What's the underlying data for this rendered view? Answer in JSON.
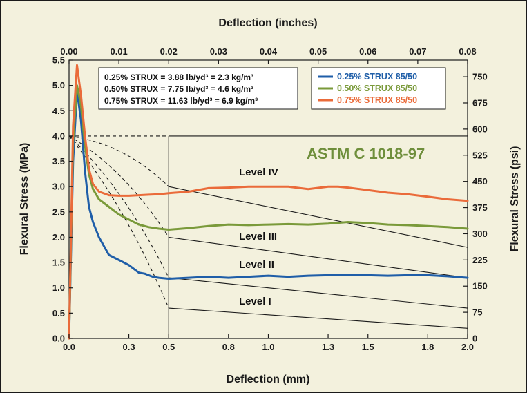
{
  "chart_data": {
    "type": "line",
    "xlabel": "Deflection (mm)",
    "x2label": "Deflection (inches)",
    "ylabel": "Flexural Stress (MPa)",
    "y2label": "Flexural Stress (psi)",
    "xlim": [
      0,
      2.0
    ],
    "ylim": [
      0,
      5.5
    ],
    "x2lim": [
      0,
      0.08
    ],
    "y2lim": [
      0,
      797.7
    ],
    "x_ticks": [
      "0.0",
      "0.3",
      "0.5",
      "0.8",
      "1.0",
      "1.3",
      "1.5",
      "1.8",
      "2.0"
    ],
    "x2_ticks": [
      "0.00",
      "0.01",
      "0.02",
      "0.03",
      "0.04",
      "0.05",
      "0.06",
      "0.07",
      "0.08"
    ],
    "y_ticks": [
      "0.0",
      "0.5",
      "1.0",
      "1.5",
      "2.0",
      "2.5",
      "3.0",
      "3.5",
      "4.0",
      "4.5",
      "5.0",
      "5.5"
    ],
    "y2_ticks": [
      "0",
      "75",
      "150",
      "225",
      "300",
      "375",
      "450",
      "525",
      "600",
      "675",
      "750"
    ],
    "annotation_lines": [
      "0.25% STRUX = 3.88 lb/yd³ = 2.3 kg/m³",
      "0.50% STRUX = 7.75 lb/yd³ = 4.6 kg/m³",
      "0.75% STRUX = 11.63 lb/yd³ = 6.9 kg/m³"
    ],
    "standard_label": "ASTM C 1018-97",
    "standard_color": "#6f8f3c",
    "levels": [
      {
        "name": "Level IV",
        "start": 3.0,
        "end": 1.8
      },
      {
        "name": "Level III",
        "start": 2.0,
        "end": 1.2
      },
      {
        "name": "Level II",
        "start": 1.2,
        "end": 0.6
      },
      {
        "name": "Level I",
        "start": 0.6,
        "end": 0.2
      }
    ],
    "level_origin": [
      0.0,
      4.0
    ],
    "level_x_start": 0.5,
    "level_box_top": 4.0,
    "grid": false,
    "legend_position": "top-right",
    "series": [
      {
        "name": "0.25% STRUX 85/50",
        "color": "#1f5ea8",
        "x": [
          0,
          0.02,
          0.04,
          0.06,
          0.08,
          0.1,
          0.12,
          0.15,
          0.2,
          0.25,
          0.3,
          0.35,
          0.38,
          0.42,
          0.45,
          0.5,
          0.6,
          0.7,
          0.8,
          0.9,
          1.0,
          1.1,
          1.2,
          1.3,
          1.4,
          1.5,
          1.6,
          1.7,
          1.8,
          1.9,
          2.0
        ],
        "y": [
          0,
          3.5,
          4.9,
          4.3,
          3.3,
          2.6,
          2.3,
          2.0,
          1.65,
          1.55,
          1.45,
          1.3,
          1.28,
          1.22,
          1.2,
          1.18,
          1.2,
          1.22,
          1.2,
          1.22,
          1.24,
          1.22,
          1.24,
          1.25,
          1.25,
          1.25,
          1.24,
          1.25,
          1.25,
          1.23,
          1.2
        ]
      },
      {
        "name": "0.50% STRUX 85/50",
        "color": "#7a9a3a",
        "x": [
          0,
          0.02,
          0.04,
          0.06,
          0.08,
          0.1,
          0.12,
          0.15,
          0.2,
          0.25,
          0.3,
          0.35,
          0.4,
          0.45,
          0.5,
          0.6,
          0.7,
          0.8,
          0.9,
          1.0,
          1.1,
          1.2,
          1.3,
          1.4,
          1.5,
          1.6,
          1.7,
          1.8,
          1.9,
          2.0
        ],
        "y": [
          0,
          3.9,
          5.0,
          4.6,
          3.8,
          3.25,
          2.95,
          2.75,
          2.6,
          2.45,
          2.35,
          2.25,
          2.2,
          2.17,
          2.15,
          2.18,
          2.22,
          2.25,
          2.24,
          2.25,
          2.26,
          2.25,
          2.27,
          2.3,
          2.28,
          2.25,
          2.24,
          2.22,
          2.2,
          2.17
        ]
      },
      {
        "name": "0.75% STRUX 85/50",
        "color": "#ea6b3a",
        "x": [
          0,
          0.02,
          0.04,
          0.06,
          0.08,
          0.1,
          0.12,
          0.15,
          0.2,
          0.25,
          0.3,
          0.35,
          0.4,
          0.45,
          0.5,
          0.6,
          0.7,
          0.8,
          0.9,
          1.0,
          1.1,
          1.2,
          1.3,
          1.35,
          1.4,
          1.5,
          1.6,
          1.7,
          1.8,
          1.9,
          2.0
        ],
        "y": [
          0,
          4.2,
          5.4,
          4.8,
          4.0,
          3.35,
          3.05,
          2.9,
          2.83,
          2.82,
          2.82,
          2.83,
          2.84,
          2.85,
          2.87,
          2.9,
          2.97,
          2.98,
          3.0,
          3.0,
          3.0,
          2.95,
          3.0,
          3.0,
          2.98,
          2.93,
          2.88,
          2.85,
          2.8,
          2.75,
          2.72
        ]
      }
    ]
  }
}
